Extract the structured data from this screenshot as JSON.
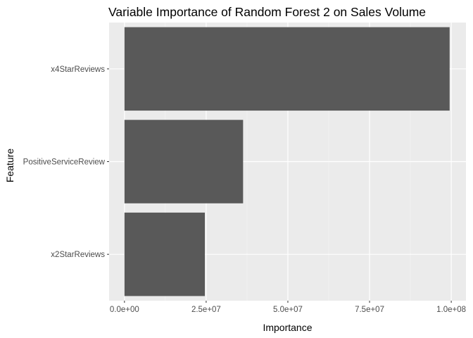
{
  "chart_data": {
    "type": "bar",
    "orientation": "horizontal",
    "title": "Variable Importance of Random Forest 2 on Sales Volume",
    "xlabel": "Importance",
    "ylabel": "Feature",
    "categories": [
      "x4StarReviews",
      "PositiveServiceReview",
      "x2StarReviews"
    ],
    "values": [
      99500000,
      36300000,
      24600000
    ],
    "xlim": [
      -4700000,
      104500000
    ],
    "x_ticks": [
      0,
      25000000,
      50000000,
      75000000,
      100000000
    ],
    "x_tick_labels": [
      "0.0e+00",
      "2.5e+07",
      "5.0e+07",
      "7.5e+07",
      "1.0e+08"
    ],
    "grid": true,
    "legend": "none",
    "colors": {
      "bar": "#595959",
      "panel": "#ebebeb",
      "grid_major": "#ffffff",
      "grid_minor": "#f5f5f5",
      "tick": "#333333"
    }
  }
}
